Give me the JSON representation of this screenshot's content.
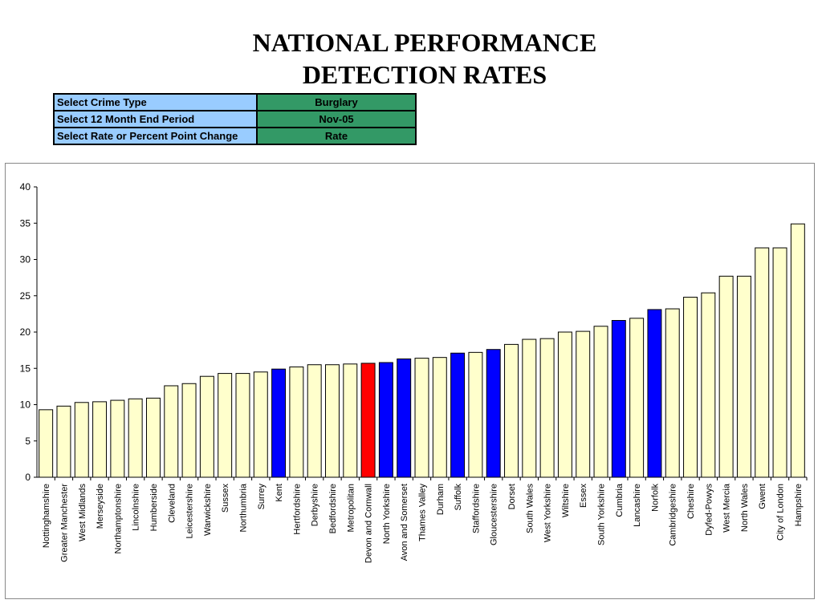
{
  "header": {
    "title_line1": "NATIONAL PERFORMANCE",
    "title_line2": "DETECTION RATES"
  },
  "selectors": [
    {
      "label": "Select Crime Type",
      "value": "Burglary"
    },
    {
      "label": "Select 12 Month End Period",
      "value": "Nov-05"
    },
    {
      "label": "Select Rate or Percent Point Change",
      "value": "Rate"
    }
  ],
  "colors": {
    "bar_default": "#ffffcc",
    "bar_highlight_blue": "#0000ff",
    "bar_highlight_red": "#ff0000",
    "selector_label_bg": "#99ccff",
    "selector_value_bg": "#339966"
  },
  "chart_data": {
    "type": "bar",
    "title": "",
    "xlabel": "",
    "ylabel": "",
    "ylim": [
      0,
      40
    ],
    "yticks": [
      0,
      5,
      10,
      15,
      20,
      25,
      30,
      35,
      40
    ],
    "grid": false,
    "legend": "none",
    "categories": [
      "Nottinghamshire",
      "Greater Manchester",
      "West Midlands",
      "Merseyside",
      "Northamptonshire",
      "Lincolnshire",
      "Humberside",
      "Cleveland",
      "Leicestershire",
      "Warwickshire",
      "Sussex",
      "Northumbria",
      "Surrey",
      "Kent",
      "Hertfordshire",
      "Derbyshire",
      "Bedfordshire",
      "Metropolitan",
      "Devon and Cornwall",
      "North Yorkshire",
      "Avon and Somerset",
      "Thames Valley",
      "Durham",
      "Suffolk",
      "Staffordshire",
      "Gloucestershire",
      "Dorset",
      "South Wales",
      "West Yorkshire",
      "Wiltshire",
      "Essex",
      "South Yorkshire",
      "Cumbria",
      "Lancashire",
      "Norfolk",
      "Cambridgeshire",
      "Cheshire",
      "Dyfed-Powys",
      "West Mercia",
      "North Wales",
      "Gwent",
      "City of London",
      "Hampshire"
    ],
    "values": [
      9.3,
      9.8,
      10.3,
      10.4,
      10.6,
      10.8,
      10.9,
      12.6,
      12.9,
      13.9,
      14.3,
      14.3,
      14.5,
      14.9,
      15.2,
      15.5,
      15.5,
      15.6,
      15.7,
      15.8,
      16.3,
      16.4,
      16.5,
      17.1,
      17.2,
      17.6,
      18.3,
      19.0,
      19.1,
      20.0,
      20.1,
      20.8,
      21.6,
      21.9,
      23.1,
      23.2,
      24.8,
      25.4,
      27.7,
      27.7,
      31.6,
      31.6,
      34.9
    ],
    "highlight": [
      "none",
      "none",
      "none",
      "none",
      "none",
      "none",
      "none",
      "none",
      "none",
      "none",
      "none",
      "none",
      "none",
      "blue",
      "none",
      "none",
      "none",
      "none",
      "red",
      "blue",
      "blue",
      "none",
      "none",
      "blue",
      "none",
      "blue",
      "none",
      "none",
      "none",
      "none",
      "none",
      "none",
      "blue",
      "none",
      "blue",
      "none",
      "none",
      "none",
      "none",
      "none",
      "none",
      "none",
      "none"
    ]
  }
}
